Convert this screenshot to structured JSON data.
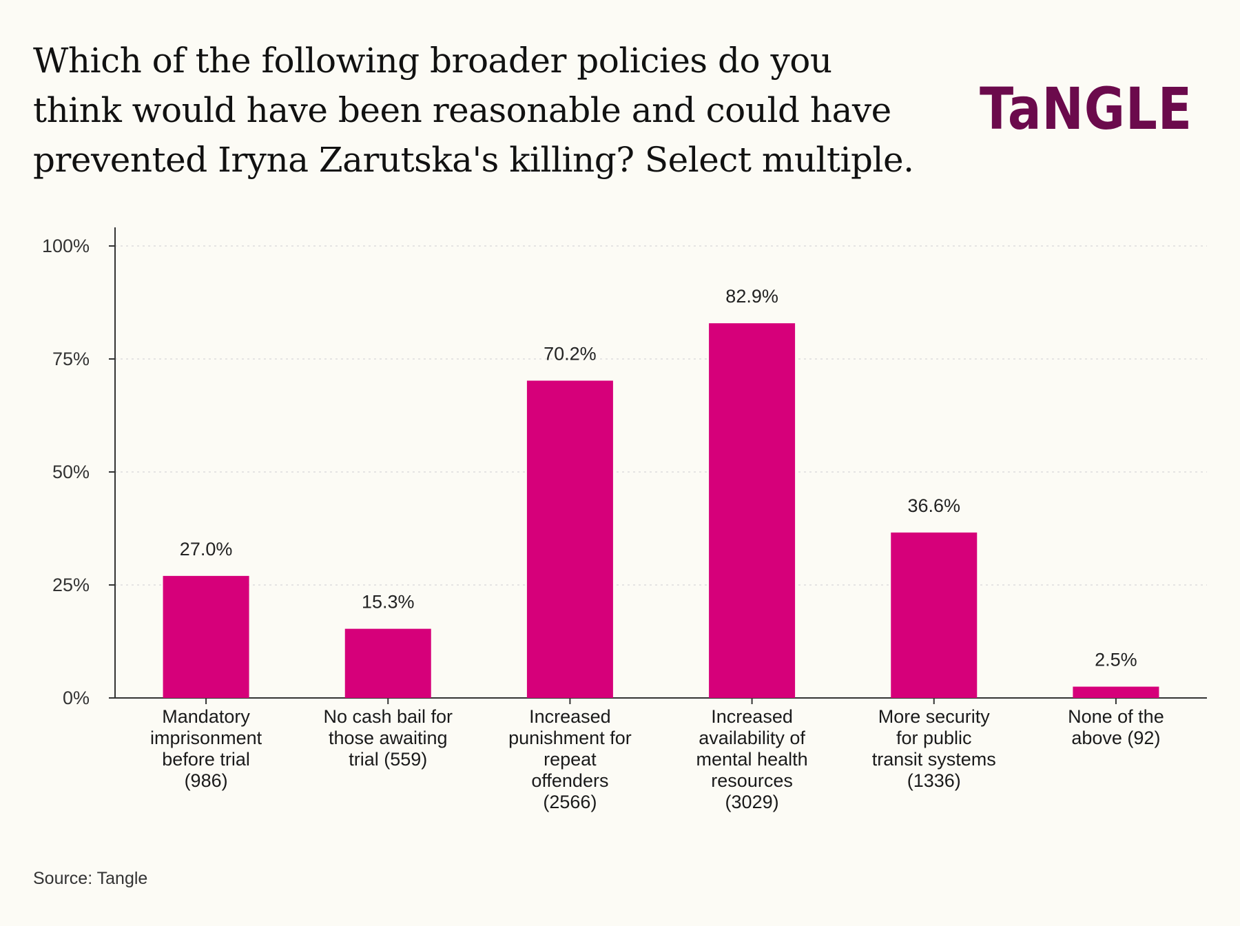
{
  "title": "Which of the following broader policies do you think would have been reasonable and could have prevented Iryna Zarutska's killing? Select multiple.",
  "logo_text": "TaNGLE",
  "source": "Source: Tangle",
  "colors": {
    "background": "#fcfbf5",
    "bar": "#d6007a",
    "logo": "#6b0a4c",
    "axis": "#333333",
    "grid": "#dddddd"
  },
  "chart_data": {
    "type": "bar",
    "title": "Which of the following broader policies do you think would have been reasonable and could have prevented Iryna Zarutska's killing? Select multiple.",
    "xlabel": "",
    "ylabel": "",
    "ylim": [
      0,
      100
    ],
    "grid": true,
    "yticks": [
      "0%",
      "25%",
      "50%",
      "75%",
      "100%"
    ],
    "categories": [
      [
        "Mandatory",
        "imprisonment",
        "before trial",
        "(986)"
      ],
      [
        "No cash bail for",
        "those awaiting",
        "trial (559)"
      ],
      [
        "Increased",
        "punishment for",
        "repeat",
        "offenders",
        "(2566)"
      ],
      [
        "Increased",
        "availability of",
        "mental health",
        "resources",
        "(3029)"
      ],
      [
        "More security",
        "for public",
        "transit systems",
        "(1336)"
      ],
      [
        "None of the",
        "above (92)"
      ]
    ],
    "values": [
      27.0,
      15.3,
      70.2,
      82.9,
      36.6,
      2.5
    ],
    "data_labels": [
      "27.0%",
      "15.3%",
      "70.2%",
      "82.9%",
      "36.6%",
      "2.5%"
    ]
  }
}
